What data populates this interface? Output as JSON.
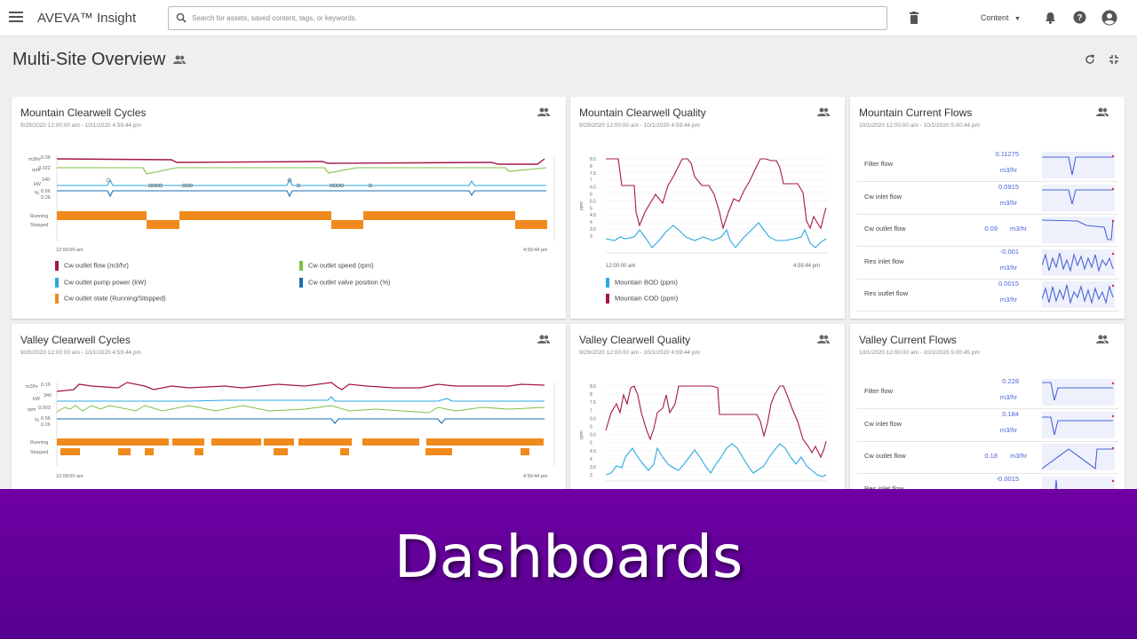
{
  "app": {
    "title": "AVEVA™ Insight"
  },
  "search": {
    "placeholder": "Search for assets, saved content, tags, or keywords."
  },
  "header": {
    "content_label": "Content"
  },
  "page": {
    "title": "Multi-Site Overview"
  },
  "cards": {
    "mcc": {
      "title": "Mountain Clearwell Cycles",
      "range": "9/29/2020 12:00:00 am - 10/1/2020 4:59:44 pm",
      "t_start": "12:00:00 am",
      "t_end": "4:59:44 pm",
      "y_labels": [
        "m3/hr",
        "rpm",
        "kW",
        "%"
      ],
      "y_vals": [
        "0.09",
        "0.022",
        "240",
        "0.56",
        "0.26"
      ],
      "state_labels": [
        "Running",
        "Stopped"
      ],
      "legend": [
        "Cw outlet flow (m3/hr)",
        "Cw outlet speed (rpm)",
        "Cw outlet pump power (kW)",
        "Cw outlet valve position (%)",
        "Cw outlet state (Running/Stopped)"
      ]
    },
    "mcq": {
      "title": "Mountain Clearwell Quality",
      "range": "9/29/2020 12:00:00 am - 10/1/2020 4:59:44 pm",
      "t_start": "12:00:00 am",
      "t_end": "4:59:44 pm",
      "y_unit": "ppm",
      "legend": [
        "Mountain BOD (ppm)",
        "Mountain COD (ppm)"
      ]
    },
    "mcf": {
      "title": "Mountain Current Flows",
      "range": "10/1/2020 12:00:00 am - 10/1/2020 5:00:44 pm",
      "rows": [
        {
          "name": "Filter flow",
          "value": "0.11275",
          "unit": "m3/hr"
        },
        {
          "name": "Cw inlet flow",
          "value": "0.0915",
          "unit": "m3/hr"
        },
        {
          "name": "Cw outlet flow",
          "value": "0.09",
          "unit": "m3/hr"
        },
        {
          "name": "Res inlet flow",
          "value": "-0.001",
          "unit": "m3/hr"
        },
        {
          "name": "Res outlet flow",
          "value": "0.0015",
          "unit": "m3/hr"
        }
      ]
    },
    "vcc": {
      "title": "Valley Clearwell Cycles",
      "range": "9/29/2020 12:00:00 am - 10/1/2020 4:59:44 pm",
      "t_start": "12:00:00 am",
      "t_end": "4:59:44 pm",
      "y_labels": [
        "m3/hr",
        "kW",
        "rpm",
        "%"
      ],
      "y_vals": [
        "0.19",
        "340",
        "0.003",
        "0.56",
        "0.26"
      ],
      "state_labels": [
        "Running",
        "Stopped"
      ]
    },
    "vcq": {
      "title": "Valley Clearwell Quality",
      "range": "9/29/2020 12:00:00 am - 10/1/2020 4:59:44 pm",
      "y_unit": "ppm"
    },
    "vcf": {
      "title": "Valley Current Flows",
      "range": "10/1/2020 12:00:00 am - 10/1/2020 5:00:45 pm",
      "rows": [
        {
          "name": "Filter flow",
          "value": "0.228",
          "unit": "m3/hr"
        },
        {
          "name": "Cw inlet flow",
          "value": "0.184",
          "unit": "m3/hr"
        },
        {
          "name": "Cw outlet flow",
          "value": "0.18",
          "unit": "m3/hr"
        },
        {
          "name": "Res inlet flow",
          "value": "-0.0015",
          "unit": ""
        }
      ]
    }
  },
  "quality_ticks": [
    "8.5",
    "8",
    "7.5",
    "7",
    "6.5",
    "6",
    "5.5",
    "5",
    "4.5",
    "4",
    "3.5",
    "3"
  ],
  "banner": {
    "text": "Dashboards"
  },
  "colors": {
    "flow": "#a3174c",
    "speed": "#7dc142",
    "power": "#29a9e1",
    "valve": "#1a6fb5",
    "state": "#f08a1c",
    "spark": "#4a63d8",
    "banner": "#6200a0"
  }
}
